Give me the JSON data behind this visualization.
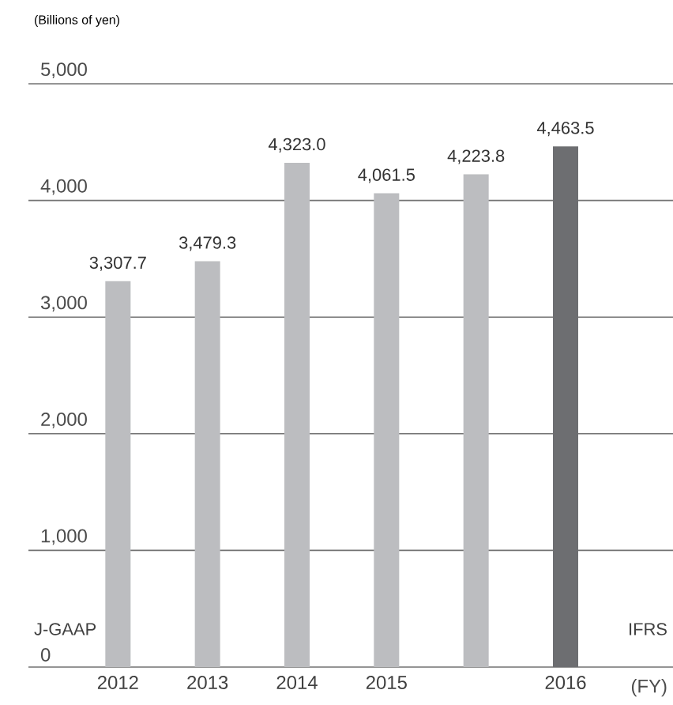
{
  "chart_data": {
    "type": "bar",
    "title": "(Billions of yen)",
    "xlabel": "(FY)",
    "categories": [
      "2012",
      "2013",
      "2014",
      "2015",
      null,
      "2016"
    ],
    "values": [
      3307.7,
      3479.3,
      4323.0,
      4061.5,
      4223.8,
      4463.5
    ],
    "colors": [
      "#bcbdc0",
      "#bcbdc0",
      "#bcbdc0",
      "#bcbdc0",
      "#bcbdc0",
      "#6d6e71"
    ],
    "value_labels": [
      "3,307.7",
      "3,479.3",
      "4,323.0",
      "4,061.5",
      "4,223.8",
      "4,463.5"
    ],
    "ylim": [
      0,
      5000
    ],
    "yticks": [
      {
        "value": 0,
        "label": "0"
      },
      {
        "value": 1000,
        "label": "1,000"
      },
      {
        "value": 2000,
        "label": "2,000"
      },
      {
        "value": 3000,
        "label": "3,000"
      },
      {
        "value": 4000,
        "label": "4,000"
      },
      {
        "value": 5000,
        "label": "5,000"
      }
    ],
    "grid": "y",
    "annotations": [
      "J-GAAP",
      "IFRS"
    ]
  }
}
